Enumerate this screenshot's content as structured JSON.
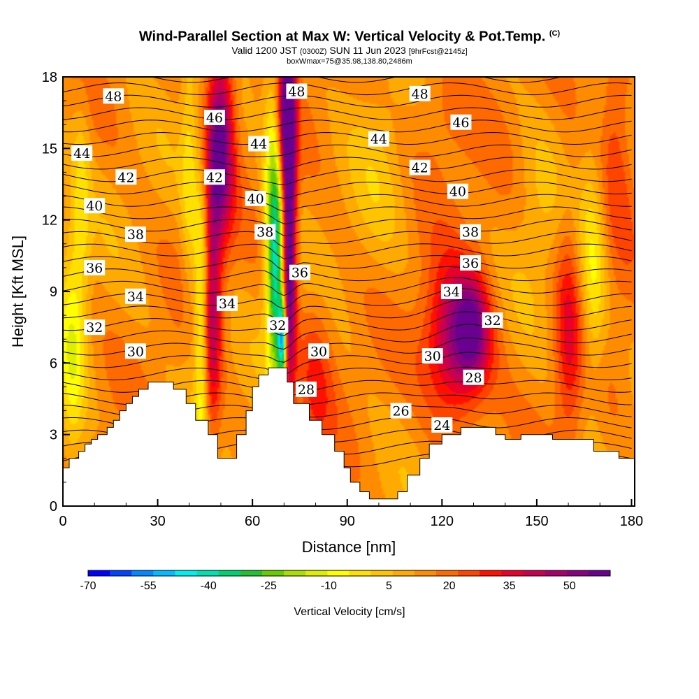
{
  "title": {
    "main": "Wind-Parallel Section at Max W: Vertical Velocity & Pot.Temp.",
    "copyright": "(C)",
    "valid_prefix": "Valid 1200 JST",
    "zulu": "(0300Z)",
    "valid_date": "SUN 11 Jun 2023",
    "forecast": "[9hrFcst@2145z]",
    "box": "boxWmax=75@35.98,138.80,2486m"
  },
  "chart_data": {
    "type": "heatmap",
    "xlabel": "Distance [nm]",
    "ylabel": "Height [Kft MSL]",
    "xlim": [
      0,
      181
    ],
    "ylim": [
      0,
      18
    ],
    "x_ticks": [
      "0",
      "30",
      "60",
      "90",
      "120",
      "150",
      "180"
    ],
    "y_ticks": [
      "0",
      "3",
      "6",
      "9",
      "12",
      "15",
      "18"
    ],
    "colorbar": {
      "title": "Vertical Velocity [cm/s]",
      "tick_labels": [
        "-70",
        "-55",
        "-40",
        "-25",
        "-10",
        "5",
        "20",
        "35",
        "50"
      ],
      "colors": [
        "#0000ff",
        "#0044ff",
        "#0088ff",
        "#00bbff",
        "#00eeee",
        "#00e0b0",
        "#00d070",
        "#22c030",
        "#66cc00",
        "#aadd00",
        "#ddee00",
        "#ffff00",
        "#ffe000",
        "#ffc400",
        "#ffaa00",
        "#ff8c00",
        "#ff6a00",
        "#ff4400",
        "#ff1000",
        "#e8002a",
        "#c80050",
        "#a8006a",
        "#880080",
        "#6a0090"
      ]
    },
    "terrain": [
      [
        0,
        1.6
      ],
      [
        2,
        1.6
      ],
      [
        2,
        2
      ],
      [
        5,
        2
      ],
      [
        5,
        2.3
      ],
      [
        7,
        2.3
      ],
      [
        7,
        2.6
      ],
      [
        9,
        2.6
      ],
      [
        9,
        2.8
      ],
      [
        11,
        2.8
      ],
      [
        11,
        3
      ],
      [
        14,
        3
      ],
      [
        14,
        3.3
      ],
      [
        16,
        3.3
      ],
      [
        16,
        3.6
      ],
      [
        18,
        3.6
      ],
      [
        18,
        4
      ],
      [
        20,
        4
      ],
      [
        20,
        4.3
      ],
      [
        22,
        4.3
      ],
      [
        22,
        4.6
      ],
      [
        24,
        4.6
      ],
      [
        24,
        4.9
      ],
      [
        27,
        4.9
      ],
      [
        27,
        5.2
      ],
      [
        35,
        5.2
      ],
      [
        35,
        4.9
      ],
      [
        39,
        4.9
      ],
      [
        39,
        4.3
      ],
      [
        42,
        4.3
      ],
      [
        42,
        3.6
      ],
      [
        46,
        3.6
      ],
      [
        46,
        3
      ],
      [
        49,
        3
      ],
      [
        49,
        2
      ],
      [
        55,
        2
      ],
      [
        55,
        3
      ],
      [
        58,
        3
      ],
      [
        58,
        4
      ],
      [
        60,
        4
      ],
      [
        60,
        5
      ],
      [
        62,
        5
      ],
      [
        62,
        5.5
      ],
      [
        65,
        5.5
      ],
      [
        65,
        5.8
      ],
      [
        71,
        5.8
      ],
      [
        71,
        5.2
      ],
      [
        73,
        5.2
      ],
      [
        73,
        4.3
      ],
      [
        78,
        4.3
      ],
      [
        78,
        3.6
      ],
      [
        82,
        3.6
      ],
      [
        82,
        3
      ],
      [
        86,
        3
      ],
      [
        86,
        2.3
      ],
      [
        89,
        2.3
      ],
      [
        89,
        1.6
      ],
      [
        91,
        1.6
      ],
      [
        91,
        1
      ],
      [
        94,
        1
      ],
      [
        94,
        0.6
      ],
      [
        97,
        0.6
      ],
      [
        97,
        0.3
      ],
      [
        106,
        0.3
      ],
      [
        106,
        0.6
      ],
      [
        109,
        0.6
      ],
      [
        109,
        1.3
      ],
      [
        113,
        1.3
      ],
      [
        113,
        2
      ],
      [
        116,
        2
      ],
      [
        116,
        2.6
      ],
      [
        120,
        2.6
      ],
      [
        120,
        3
      ],
      [
        126,
        3
      ],
      [
        126,
        3.3
      ],
      [
        137,
        3.3
      ],
      [
        137,
        3
      ],
      [
        140,
        3
      ],
      [
        140,
        2.8
      ],
      [
        145,
        2.8
      ],
      [
        145,
        3
      ],
      [
        155,
        3
      ],
      [
        155,
        2.8
      ],
      [
        168,
        2.8
      ],
      [
        168,
        2.3
      ],
      [
        176,
        2.3
      ],
      [
        176,
        2
      ],
      [
        181,
        2
      ]
    ],
    "w_features": [
      {
        "x": 71.5,
        "y": 11.5,
        "sx": 1.6,
        "sy": 5.0,
        "value": 55
      },
      {
        "x": 70.5,
        "y": 16.5,
        "sx": 2.0,
        "sy": 2.0,
        "value": 30
      },
      {
        "x": 67.5,
        "y": 9.5,
        "sx": 2.0,
        "sy": 3.2,
        "value": -45
      },
      {
        "x": 69.5,
        "y": 7.0,
        "sx": 0.9,
        "sy": 1.2,
        "value": -55
      },
      {
        "x": 66.5,
        "y": 14.0,
        "sx": 2.2,
        "sy": 3.5,
        "value": -20
      },
      {
        "x": 50.0,
        "y": 15.5,
        "sx": 3.0,
        "sy": 3.0,
        "value": 40
      },
      {
        "x": 47.0,
        "y": 8.5,
        "sx": 2.2,
        "sy": 4.0,
        "value": 30
      },
      {
        "x": 44.0,
        "y": 8.0,
        "sx": 1.6,
        "sy": 4.0,
        "value": -30
      },
      {
        "x": 40.0,
        "y": 14.0,
        "sx": 1.8,
        "sy": 4.5,
        "value": -12
      },
      {
        "x": 125.0,
        "y": 6.8,
        "sx": 7.0,
        "sy": 2.2,
        "value": 38
      },
      {
        "x": 130.0,
        "y": 7.5,
        "sx": 3.5,
        "sy": 1.5,
        "value": 18
      },
      {
        "x": 3.0,
        "y": 6.5,
        "sx": 3.0,
        "sy": 4.0,
        "value": -18
      },
      {
        "x": 6.0,
        "y": 13.0,
        "sx": 2.0,
        "sy": 3.0,
        "value": -10
      },
      {
        "x": 168.0,
        "y": 9.5,
        "sx": 3.0,
        "sy": 3.5,
        "value": -16
      },
      {
        "x": 160.0,
        "y": 7.5,
        "sx": 3.0,
        "sy": 3.5,
        "value": 18
      },
      {
        "x": 175.0,
        "y": 15.5,
        "sx": 4.0,
        "sy": 4.0,
        "value": 14
      },
      {
        "x": 100.0,
        "y": 14.0,
        "sx": 6.0,
        "sy": 3.0,
        "value": -6
      },
      {
        "x": 120.0,
        "y": 16.5,
        "sx": 8.0,
        "sy": 2.0,
        "value": 8
      },
      {
        "x": 80.0,
        "y": 5.5,
        "sx": 4.0,
        "sy": 2.5,
        "value": 12
      },
      {
        "x": 150.0,
        "y": 12.5,
        "sx": 5.0,
        "sy": 3.0,
        "value": -6
      }
    ],
    "theta_series": [
      {
        "label": "24",
        "y": [
          1.9,
          1.9,
          1.9,
          1.9,
          1.9,
          1.9,
          1.9,
          1.9,
          1.9,
          1.9,
          1.9,
          1.9,
          1.9,
          1.9,
          1.9,
          1.9,
          1.9,
          1.9,
          1.9,
          1.9,
          1.9,
          1.9,
          1.9,
          1.9,
          1.9,
          1.9,
          1.9,
          1.9,
          1.9,
          1.9,
          1.9,
          1.9,
          1.9,
          1.9,
          1.9,
          1.9,
          1.9,
          1.9,
          1.9,
          1.9,
          1.9,
          1.9,
          1.9,
          1.9,
          1.9,
          1.9,
          1.9,
          1.9,
          1.9,
          1.9,
          1.9,
          1.9,
          1.9,
          1.9,
          1.9,
          1.9,
          1.9,
          1.9,
          1.9,
          1.9,
          1.9,
          1.9,
          1.9,
          1.9,
          1.9,
          1.9,
          1.9,
          1.9,
          1.9,
          1.9,
          1.9,
          1.9,
          1.9,
          1.9,
          1.9,
          1.9,
          1.9,
          1.9,
          1.9,
          1.9,
          1.9,
          1.9,
          1.9,
          1.9,
          1.9,
          1.9,
          1.9,
          1.9,
          1.9,
          1.9,
          1.9,
          1.9,
          1.9,
          1.9,
          1.9,
          1.9,
          1.9,
          1.9,
          1.9,
          1.9,
          1.9,
          1.9,
          1.9,
          1.9,
          1.9,
          1.9,
          1.9,
          1.9,
          1.9,
          1.9,
          1.9,
          1.9,
          1.9,
          1.9,
          1.9,
          1.9,
          1.9,
          1.9,
          1.9,
          1.9,
          1.9,
          1.9,
          1.9,
          1.9,
          1.9,
          1.9,
          1.9,
          1.9,
          1.9,
          1.9,
          1.9,
          1.9,
          1.9,
          1.9,
          1.9,
          1.9,
          1.9,
          1.9,
          1.9,
          1.9,
          1.9,
          1.9,
          1.9,
          1.9,
          1.9,
          1.9,
          1.9,
          1.9,
          1.9,
          1.9,
          1.9,
          1.9,
          1.9,
          1.9,
          1.9,
          1.9,
          1.9,
          1.9,
          1.9,
          1.9,
          1.9,
          1.9,
          1.9,
          1.9,
          1.9,
          1.9,
          1.9,
          1.9,
          1.9,
          1.9,
          1.9,
          1.9,
          1.9,
          1.9,
          1.9,
          1.9,
          1.9,
          1.9,
          1.9,
          1.9,
          1.9,
          1.9,
          1.9,
          1.9,
          1.9,
          1.9,
          1.9,
          1.9,
          1.9,
          1.9,
          1.9,
          1.9,
          1.9
        ]
      }
    ],
    "theta_labels": [
      {
        "text": "48",
        "x": 16,
        "y": 17.2
      },
      {
        "text": "46",
        "x": 48,
        "y": 16.3
      },
      {
        "text": "48",
        "x": 74,
        "y": 17.4
      },
      {
        "text": "48",
        "x": 113,
        "y": 17.3
      },
      {
        "text": "46",
        "x": 126,
        "y": 16.1
      },
      {
        "text": "44",
        "x": 6,
        "y": 14.8
      },
      {
        "text": "44",
        "x": 62,
        "y": 15.2
      },
      {
        "text": "44",
        "x": 100,
        "y": 15.4
      },
      {
        "text": "42",
        "x": 20,
        "y": 13.8
      },
      {
        "text": "42",
        "x": 48,
        "y": 13.8
      },
      {
        "text": "42",
        "x": 113,
        "y": 14.2
      },
      {
        "text": "40",
        "x": 10,
        "y": 12.6
      },
      {
        "text": "40",
        "x": 61,
        "y": 12.9
      },
      {
        "text": "40",
        "x": 125,
        "y": 13.2
      },
      {
        "text": "38",
        "x": 23,
        "y": 11.4
      },
      {
        "text": "38",
        "x": 64,
        "y": 11.5
      },
      {
        "text": "38",
        "x": 129,
        "y": 11.5
      },
      {
        "text": "36",
        "x": 10,
        "y": 10.0
      },
      {
        "text": "36",
        "x": 75,
        "y": 9.8
      },
      {
        "text": "36",
        "x": 129,
        "y": 10.2
      },
      {
        "text": "34",
        "x": 23,
        "y": 8.8
      },
      {
        "text": "34",
        "x": 52,
        "y": 8.5
      },
      {
        "text": "34",
        "x": 123,
        "y": 9.0
      },
      {
        "text": "32",
        "x": 10,
        "y": 7.5
      },
      {
        "text": "32",
        "x": 68,
        "y": 7.6
      },
      {
        "text": "32",
        "x": 136,
        "y": 7.8
      },
      {
        "text": "30",
        "x": 23,
        "y": 6.5
      },
      {
        "text": "30",
        "x": 81,
        "y": 6.5
      },
      {
        "text": "30",
        "x": 117,
        "y": 6.3
      },
      {
        "text": "28",
        "x": 77,
        "y": 4.9
      },
      {
        "text": "28",
        "x": 130,
        "y": 5.4
      },
      {
        "text": "26",
        "x": 107,
        "y": 4.0
      },
      {
        "text": "24",
        "x": 120,
        "y": 3.4
      }
    ]
  }
}
